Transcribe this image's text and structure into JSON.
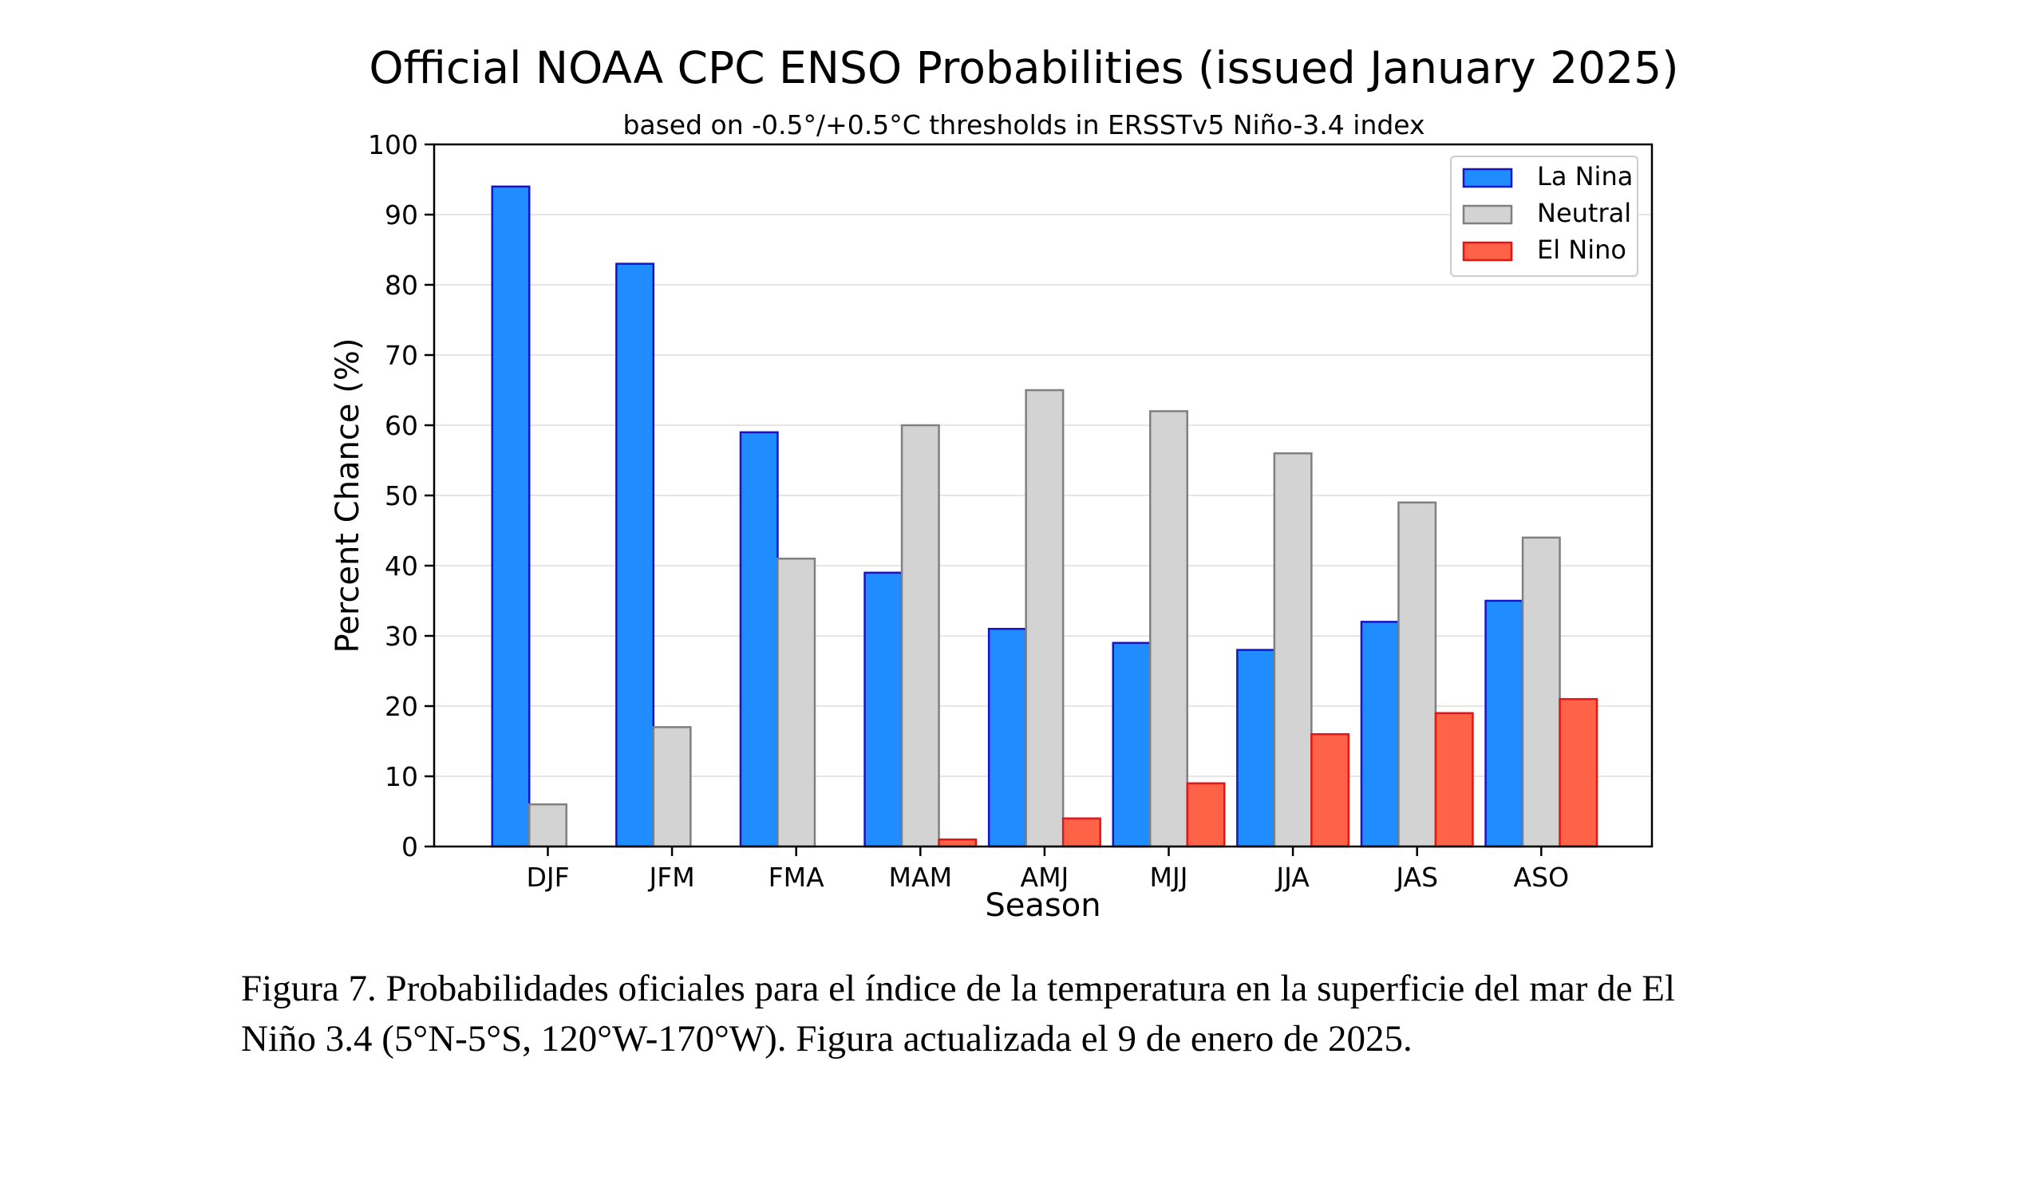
{
  "chart_data": {
    "type": "bar",
    "title": "Official NOAA CPC ENSO Probabilities (issued January 2025)",
    "subtitle": "based on -0.5°/+0.5°C thresholds in ERSSTv5 Niño-3.4 index",
    "xlabel": "Season",
    "ylabel": "Percent Chance (%)",
    "ylim": [
      0,
      100
    ],
    "yticks": [
      0,
      10,
      20,
      30,
      40,
      50,
      60,
      70,
      80,
      90,
      100
    ],
    "grid": true,
    "legend_position": "top-right",
    "categories": [
      "DJF",
      "JFM",
      "FMA",
      "MAM",
      "AMJ",
      "MJJ",
      "JJA",
      "JAS",
      "ASO"
    ],
    "series": [
      {
        "name": "La Nina",
        "color": "#1f8cff",
        "edge": "#1414c8",
        "values": [
          94,
          83,
          59,
          39,
          31,
          29,
          28,
          32,
          35
        ]
      },
      {
        "name": "Neutral",
        "color": "#d3d3d3",
        "edge": "#808080",
        "values": [
          6,
          17,
          41,
          60,
          65,
          62,
          56,
          49,
          44
        ]
      },
      {
        "name": "El Nino",
        "color": "#ff6347",
        "edge": "#e61414",
        "values": [
          0,
          0,
          0,
          1,
          4,
          9,
          16,
          19,
          21
        ]
      }
    ]
  },
  "caption": {
    "line1": "Figura 7. Probabilidades oficiales para el índice de la temperatura en la superficie del mar de El",
    "line2": "Niño 3.4  (5°N-5°S, 120°W-170°W). Figura actualizada el 9 de enero de 2025."
  }
}
